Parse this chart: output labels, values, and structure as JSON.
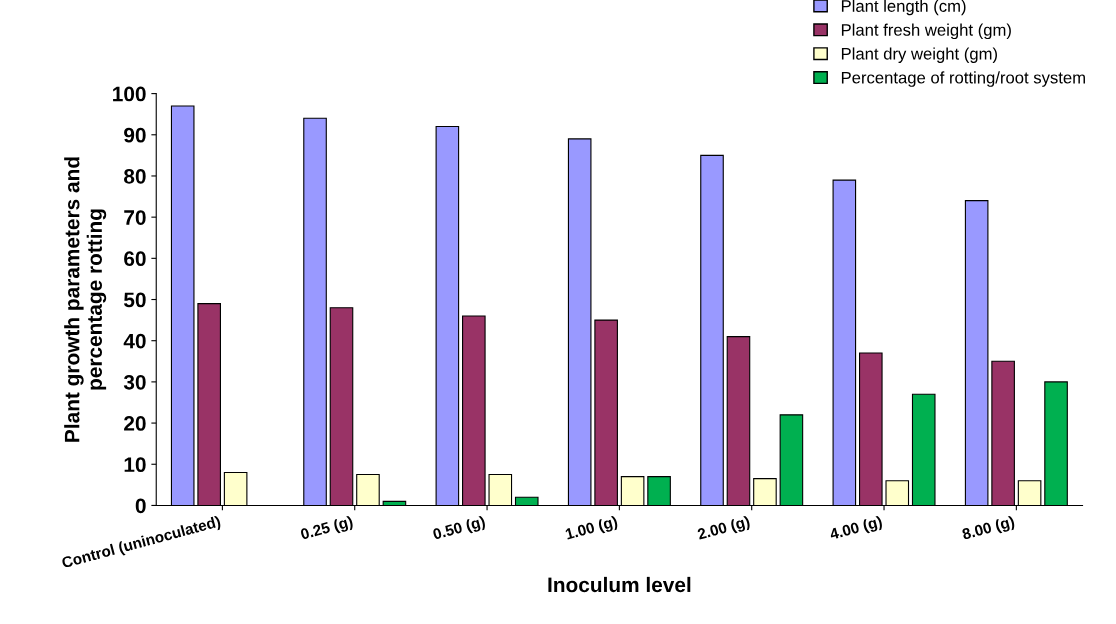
{
  "chart_data": {
    "type": "bar",
    "xlabel": "Inoculum level",
    "ylabel": "Plant growth parameters and\npercentage rotting",
    "categories": [
      "Control (uninoculated)",
      "0.25 (g)",
      "0.50 (g)",
      "1.00 (g)",
      "2.00 (g)",
      "4.00 (g)",
      "8.00 (g)"
    ],
    "series": [
      {
        "name": "Plant length (cm)",
        "color": "#9999ff",
        "values": [
          97,
          94,
          92,
          89,
          85,
          79,
          74
        ]
      },
      {
        "name": "Plant fresh weight (gm)",
        "color": "#993366",
        "values": [
          49,
          48,
          46,
          45,
          41,
          37,
          35
        ]
      },
      {
        "name": "Plant dry weight (gm)",
        "color": "#ffffcc",
        "values": [
          8,
          7.5,
          7.5,
          7,
          6.5,
          6,
          6
        ]
      },
      {
        "name": "Percentage of rotting/root system",
        "color": "#00b050",
        "values": [
          0,
          1,
          2,
          7,
          22,
          27,
          30
        ]
      }
    ],
    "ylim": [
      0,
      100
    ],
    "yticks": [
      0,
      10,
      20,
      30,
      40,
      50,
      60,
      70,
      80,
      90,
      100
    ],
    "grid": false,
    "legend": "top right"
  }
}
